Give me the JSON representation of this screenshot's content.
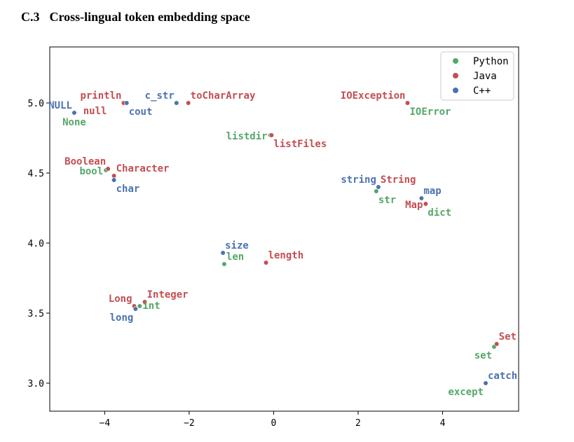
{
  "heading": {
    "number": "C.3",
    "title": "Cross-lingual token embedding space"
  },
  "colors": {
    "Python": "#55a868",
    "Java": "#c44e52",
    "C++": "#4c72b0"
  },
  "chart_data": {
    "type": "scatter",
    "title": "",
    "xlabel": "",
    "ylabel": "",
    "xlim": [
      -5.3,
      5.8
    ],
    "ylim": [
      2.8,
      5.4
    ],
    "xticks": [
      -4,
      -2,
      0,
      2,
      4
    ],
    "yticks": [
      3.0,
      3.5,
      4.0,
      4.5,
      5.0
    ],
    "xtick_labels": [
      "−4",
      "−2",
      "0",
      "2",
      "4"
    ],
    "ytick_labels": [
      "3.0",
      "3.5",
      "4.0",
      "4.5",
      "5.0"
    ],
    "grid": false,
    "legend_position": "top-right",
    "series": [
      {
        "name": "Python",
        "points": [
          {
            "label": "None",
            "x": -4.72,
            "y": 4.93,
            "anchor": "below"
          },
          {
            "label": "listdir",
            "x": -0.08,
            "y": 4.77,
            "anchor": "left"
          },
          {
            "label": "IOError",
            "x": 3.17,
            "y": 5.0,
            "anchor": "below-right"
          },
          {
            "label": "bool",
            "x": -3.97,
            "y": 4.52,
            "anchor": "left"
          },
          {
            "label": "str",
            "x": 2.43,
            "y": 4.37,
            "anchor": "below-right"
          },
          {
            "label": "dict",
            "x": 3.6,
            "y": 4.28,
            "anchor": "below-right"
          },
          {
            "label": "len",
            "x": -1.17,
            "y": 3.85,
            "anchor": "above-right"
          },
          {
            "label": "int",
            "x": -3.17,
            "y": 3.55,
            "anchor": "right"
          },
          {
            "label": "set",
            "x": 5.22,
            "y": 3.26,
            "anchor": "below-left"
          },
          {
            "label": "except",
            "x": 5.02,
            "y": 3.0,
            "anchor": "below-left"
          }
        ]
      },
      {
        "name": "Java",
        "points": [
          {
            "label": "println",
            "x": -3.55,
            "y": 5.0,
            "anchor": "above-left"
          },
          {
            "label": "null",
            "x": -3.55,
            "y": 5.0,
            "anchor": "below-left-far"
          },
          {
            "label": "toCharArray",
            "x": -2.02,
            "y": 5.0,
            "anchor": "above-right"
          },
          {
            "label": "listFiles",
            "x": -0.05,
            "y": 4.77,
            "anchor": "below-right"
          },
          {
            "label": "IOException",
            "x": 3.17,
            "y": 5.0,
            "anchor": "above-left"
          },
          {
            "label": "Boolean",
            "x": -3.92,
            "y": 4.53,
            "anchor": "above-left"
          },
          {
            "label": "Character",
            "x": -3.78,
            "y": 4.48,
            "anchor": "above-right"
          },
          {
            "label": "String",
            "x": 2.48,
            "y": 4.4,
            "anchor": "above-right"
          },
          {
            "label": "Map",
            "x": 3.6,
            "y": 4.28,
            "anchor": "left"
          },
          {
            "label": "length",
            "x": -0.18,
            "y": 3.86,
            "anchor": "above-right"
          },
          {
            "label": "Integer",
            "x": -3.05,
            "y": 3.58,
            "anchor": "above-right"
          },
          {
            "label": "Long",
            "x": -3.3,
            "y": 3.55,
            "anchor": "above-left"
          },
          {
            "label": "Set",
            "x": 5.28,
            "y": 3.28,
            "anchor": "above-right"
          }
        ]
      },
      {
        "name": "C++",
        "points": [
          {
            "label": "NULL",
            "x": -4.72,
            "y": 4.93,
            "anchor": "above-left"
          },
          {
            "label": "cout",
            "x": -3.48,
            "y": 5.0,
            "anchor": "below-right"
          },
          {
            "label": "c_str",
            "x": -2.3,
            "y": 5.0,
            "anchor": "above-left"
          },
          {
            "label": "char",
            "x": -3.78,
            "y": 4.45,
            "anchor": "below-right"
          },
          {
            "label": "string",
            "x": 2.48,
            "y": 4.4,
            "anchor": "above-left"
          },
          {
            "label": "map",
            "x": 3.5,
            "y": 4.32,
            "anchor": "above-right"
          },
          {
            "label": "size",
            "x": -1.2,
            "y": 3.93,
            "anchor": "above-right"
          },
          {
            "label": "long",
            "x": -3.27,
            "y": 3.53,
            "anchor": "below-left"
          },
          {
            "label": "catch",
            "x": 5.02,
            "y": 3.0,
            "anchor": "above-right"
          }
        ]
      }
    ]
  }
}
